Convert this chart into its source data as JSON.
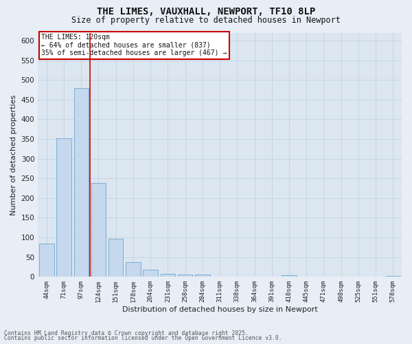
{
  "title_line1": "THE LIMES, VAUXHALL, NEWPORT, TF10 8LP",
  "title_line2": "Size of property relative to detached houses in Newport",
  "xlabel": "Distribution of detached houses by size in Newport",
  "ylabel": "Number of detached properties",
  "categories": [
    "44sqm",
    "71sqm",
    "97sqm",
    "124sqm",
    "151sqm",
    "178sqm",
    "204sqm",
    "231sqm",
    "258sqm",
    "284sqm",
    "311sqm",
    "338sqm",
    "364sqm",
    "391sqm",
    "418sqm",
    "445sqm",
    "471sqm",
    "498sqm",
    "525sqm",
    "551sqm",
    "578sqm"
  ],
  "values": [
    85,
    352,
    479,
    238,
    96,
    37,
    18,
    7,
    6,
    6,
    0,
    0,
    0,
    0,
    4,
    0,
    0,
    0,
    0,
    0,
    3
  ],
  "bar_color": "#c5d8ed",
  "bar_edgecolor": "#7aadd4",
  "redline_color": "#cc0000",
  "annotation_title": "THE LIMES: 120sqm",
  "annotation_line2": "← 64% of detached houses are smaller (837)",
  "annotation_line3": "35% of semi-detached houses are larger (467) →",
  "annotation_box_facecolor": "#ffffff",
  "annotation_box_edgecolor": "#cc0000",
  "ylim": [
    0,
    620
  ],
  "yticks": [
    0,
    50,
    100,
    150,
    200,
    250,
    300,
    350,
    400,
    450,
    500,
    550,
    600
  ],
  "grid_color": "#c8d4e3",
  "bg_color": "#dce6f0",
  "fig_facecolor": "#e8eef6",
  "footer_line1": "Contains HM Land Registry data © Crown copyright and database right 2025.",
  "footer_line2": "Contains public sector information licensed under the Open Government Licence v3.0."
}
